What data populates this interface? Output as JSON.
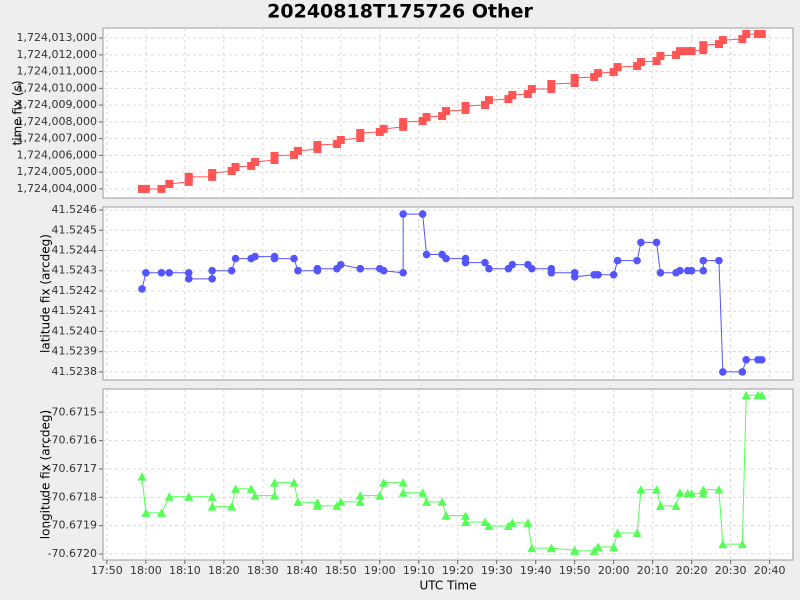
{
  "title": "20240818T175726 Other",
  "chart_data": [
    {
      "type": "line",
      "ylabel": "time fix (s)",
      "color": "#ff5555",
      "marker": "square",
      "grid": true,
      "xlim": [
        "17:49",
        "20:46"
      ],
      "x": [
        "17:59",
        "18:00",
        "18:04",
        "18:06",
        "18:11",
        "18:11",
        "18:17",
        "18:17",
        "18:22",
        "18:23",
        "18:27",
        "18:28",
        "18:33",
        "18:33",
        "18:38",
        "18:39",
        "18:44",
        "18:44",
        "18:49",
        "18:50",
        "18:55",
        "18:55",
        "19:00",
        "19:01",
        "19:06",
        "19:06",
        "19:11",
        "19:12",
        "19:16",
        "19:17",
        "19:22",
        "19:22",
        "19:27",
        "19:28",
        "19:33",
        "19:34",
        "19:38",
        "19:39",
        "19:44",
        "19:44",
        "19:50",
        "19:50",
        "19:55",
        "19:56",
        "20:00",
        "20:01",
        "20:06",
        "20:07",
        "20:11",
        "20:12",
        "20:16",
        "20:17",
        "20:19",
        "20:20",
        "20:23",
        "20:23",
        "20:27",
        "20:28",
        "20:33",
        "20:34",
        "20:37",
        "20:38"
      ],
      "values": [
        1724004000,
        1724004000,
        1724004000,
        1724004300,
        1724004420,
        1724004720,
        1724004720,
        1724004950,
        1724005070,
        1724005310,
        1724005370,
        1724005610,
        1724005730,
        1724005970,
        1724006030,
        1724006270,
        1724006380,
        1724006620,
        1724006680,
        1724006920,
        1724007040,
        1724007340,
        1724007400,
        1724007580,
        1724007700,
        1724007990,
        1724008050,
        1724008290,
        1724008350,
        1724008650,
        1724008710,
        1724008950,
        1724009010,
        1724009300,
        1724009360,
        1724009600,
        1724009660,
        1724009960,
        1724009960,
        1724010260,
        1724010320,
        1724010620,
        1724010680,
        1724010910,
        1724010970,
        1724011270,
        1724011330,
        1724011570,
        1724011630,
        1724011930,
        1724011990,
        1724012220,
        1724012220,
        1724012220,
        1724012280,
        1724012580,
        1724012640,
        1724012880,
        1724012940,
        1724013240,
        1724013240,
        1724013240
      ],
      "ylim": [
        1724003460,
        1724013600
      ],
      "yticks": [
        {
          "value": 1724004000,
          "label": "1,724,004,000"
        },
        {
          "value": 1724005000,
          "label": "1,724,005,000"
        },
        {
          "value": 1724006000,
          "label": "1,724,006,000"
        },
        {
          "value": 1724007000,
          "label": "1,724,007,000"
        },
        {
          "value": 1724008000,
          "label": "1,724,008,000"
        },
        {
          "value": 1724009000,
          "label": "1,724,009,000"
        },
        {
          "value": 1724010000,
          "label": "1,724,010,000"
        },
        {
          "value": 1724011000,
          "label": "1,724,011,000"
        },
        {
          "value": 1724012000,
          "label": "1,724,012,000"
        },
        {
          "value": 1724013000,
          "label": "1,724,013,000"
        }
      ]
    },
    {
      "type": "line",
      "ylabel": "latitude fix (arcdeg)",
      "color": "#5555ff",
      "marker": "circle",
      "grid": true,
      "xlim": [
        "17:49",
        "20:46"
      ],
      "x": [
        "17:59",
        "18:00",
        "18:04",
        "18:06",
        "18:11",
        "18:11",
        "18:17",
        "18:17",
        "18:22",
        "18:23",
        "18:27",
        "18:28",
        "18:33",
        "18:33",
        "18:38",
        "18:39",
        "18:44",
        "18:44",
        "18:49",
        "18:50",
        "18:55",
        "18:55",
        "19:00",
        "19:01",
        "19:06",
        "19:06",
        "19:11",
        "19:12",
        "19:16",
        "19:17",
        "19:22",
        "19:22",
        "19:27",
        "19:28",
        "19:33",
        "19:34",
        "19:38",
        "19:39",
        "19:44",
        "19:44",
        "19:50",
        "19:50",
        "19:55",
        "19:56",
        "20:00",
        "20:01",
        "20:06",
        "20:07",
        "20:11",
        "20:12",
        "20:16",
        "20:17",
        "20:19",
        "20:20",
        "20:23",
        "20:23",
        "20:27",
        "20:28",
        "20:33",
        "20:34",
        "20:37",
        "20:38"
      ],
      "values": [
        41.52421,
        41.52429,
        41.52429,
        41.52429,
        41.52429,
        41.52426,
        41.52426,
        41.5243,
        41.5243,
        41.52436,
        41.52436,
        41.52437,
        41.52437,
        41.52436,
        41.52436,
        41.5243,
        41.5243,
        41.52431,
        41.52431,
        41.52433,
        41.52431,
        41.52431,
        41.52431,
        41.5243,
        41.52429,
        41.52458,
        41.52458,
        41.52438,
        41.52438,
        41.52436,
        41.52436,
        41.52434,
        41.52434,
        41.52431,
        41.52431,
        41.52433,
        41.52433,
        41.52431,
        41.52431,
        41.52429,
        41.52429,
        41.52427,
        41.52428,
        41.52428,
        41.52428,
        41.52435,
        41.52435,
        41.52444,
        41.52444,
        41.52429,
        41.52429,
        41.5243,
        41.5243,
        41.5243,
        41.5243,
        41.52435,
        41.52435,
        41.5238,
        41.5238,
        41.52386,
        41.52386,
        41.52386
      ],
      "ylim": [
        41.52376,
        41.524615
      ],
      "yticks": [
        41.5238,
        41.5239,
        {
          "value": 41.524,
          "label": "41.5240"
        },
        41.5241,
        41.5242,
        41.5243,
        41.5244,
        41.5245,
        41.5246
      ]
    },
    {
      "type": "line",
      "ylabel": "longitude fix (arcdeg)",
      "xlabel": "UTC Time",
      "color": "#55ff55",
      "marker": "triangle",
      "grid": true,
      "xlim": [
        "17:49",
        "20:46"
      ],
      "xticks": [
        "17:50",
        "18:00",
        "18:10",
        "18:20",
        "18:30",
        "18:40",
        "18:50",
        "19:00",
        "19:10",
        "19:20",
        "19:30",
        "19:40",
        "19:50",
        "20:00",
        "20:10",
        "20:20",
        "20:30",
        "20:40"
      ],
      "x": [
        "17:59",
        "18:00",
        "18:04",
        "18:06",
        "18:11",
        "18:11",
        "18:17",
        "18:17",
        "18:22",
        "18:23",
        "18:27",
        "18:28",
        "18:33",
        "18:33",
        "18:38",
        "18:39",
        "18:44",
        "18:44",
        "18:49",
        "18:50",
        "18:55",
        "18:55",
        "19:00",
        "19:01",
        "19:06",
        "19:06",
        "19:11",
        "19:12",
        "19:16",
        "19:17",
        "19:22",
        "19:22",
        "19:27",
        "19:28",
        "19:33",
        "19:34",
        "19:38",
        "19:39",
        "19:44",
        "19:44",
        "19:50",
        "19:50",
        "19:55",
        "19:56",
        "20:00",
        "20:01",
        "20:06",
        "20:07",
        "20:11",
        "20:12",
        "20:16",
        "20:17",
        "20:19",
        "20:20",
        "20:23",
        "20:23",
        "20:27",
        "20:28",
        "20:33",
        "20:34",
        "20:37",
        "20:38"
      ],
      "values": [
        -70.671727,
        -70.671855,
        -70.671855,
        -70.671798,
        -70.671798,
        -70.671798,
        -70.671798,
        -70.671833,
        -70.671833,
        -70.67177,
        -70.67177,
        -70.671794,
        -70.671794,
        -70.671748,
        -70.671748,
        -70.671816,
        -70.671819,
        -70.67183,
        -70.67183,
        -70.671816,
        -70.671816,
        -70.671794,
        -70.671794,
        -70.671748,
        -70.671748,
        -70.671784,
        -70.671784,
        -70.671816,
        -70.671816,
        -70.671865,
        -70.671865,
        -70.671887,
        -70.671887,
        -70.671901,
        -70.671901,
        -70.67189,
        -70.67189,
        -70.671979,
        -70.671979,
        -70.671979,
        -70.671986,
        -70.671989,
        -70.671989,
        -70.671975,
        -70.671975,
        -70.671926,
        -70.671926,
        -70.671773,
        -70.671773,
        -70.67183,
        -70.67183,
        -70.671784,
        -70.671787,
        -70.671787,
        -70.671787,
        -70.671773,
        -70.671773,
        -70.671965,
        -70.671965,
        -70.67144,
        -70.67144,
        -70.67144
      ],
      "ylim": [
        -70.672021,
        -70.671418
      ],
      "yticks": [
        {
          "value": -70.672,
          "label": "-70.6720"
        },
        -70.6719,
        -70.6718,
        -70.6717,
        -70.6716,
        -70.6715
      ]
    }
  ]
}
